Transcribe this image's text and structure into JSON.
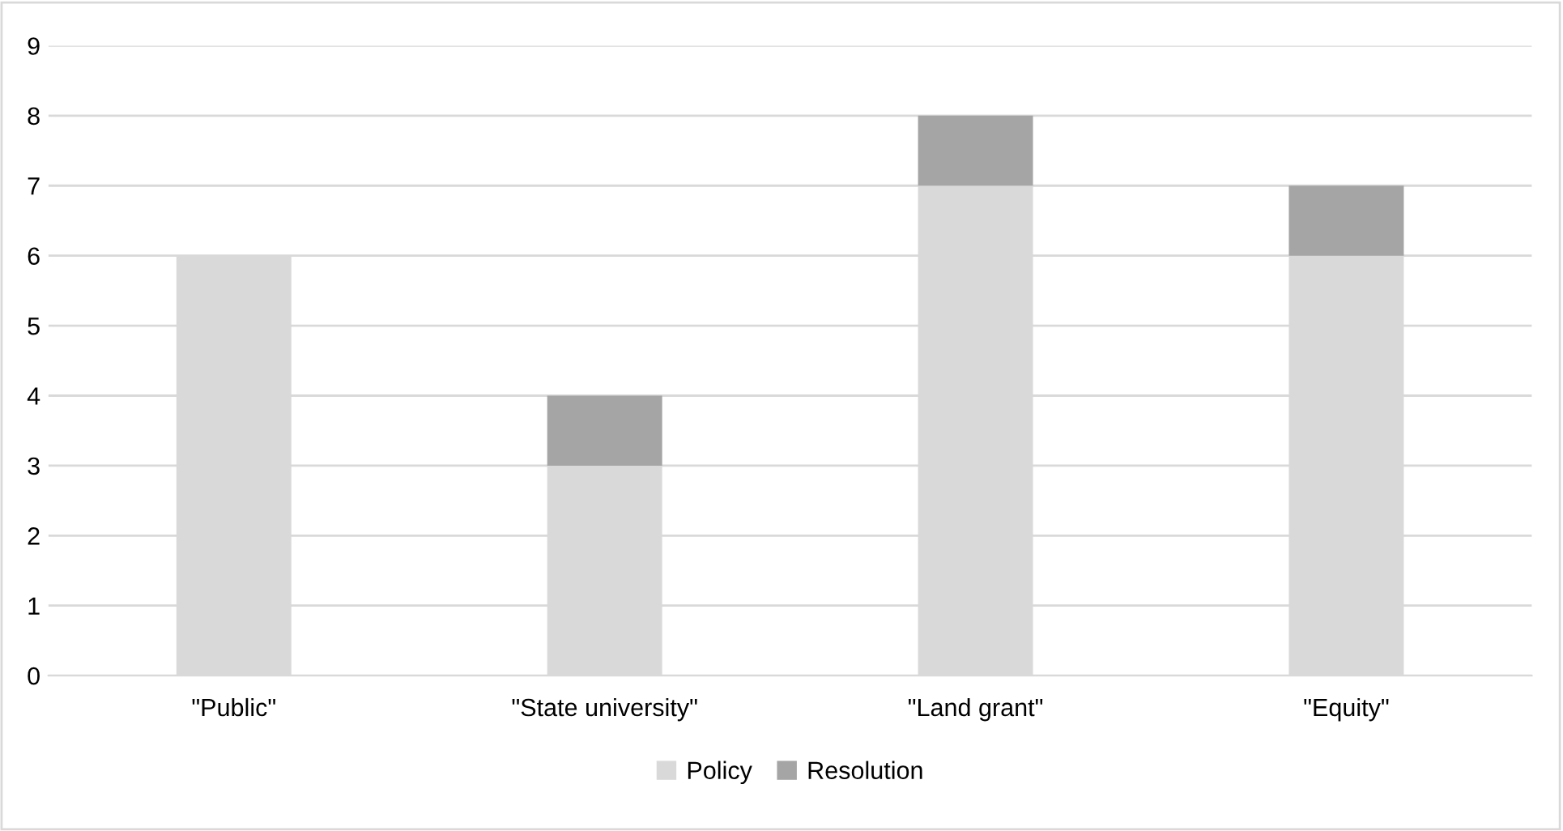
{
  "chart_data": {
    "type": "bar",
    "stacked": true,
    "categories": [
      "\"Public\"",
      "\"State university\"",
      "\"Land grant\"",
      "\"Equity\""
    ],
    "series": [
      {
        "name": "Policy",
        "color": "#d9d9d9",
        "values": [
          6,
          3,
          7,
          6
        ]
      },
      {
        "name": "Resolution",
        "color": "#a5a5a5",
        "values": [
          0,
          1,
          1,
          1
        ]
      }
    ],
    "ylim": [
      0,
      9
    ],
    "yticks": [
      0,
      1,
      2,
      3,
      4,
      5,
      6,
      7,
      8,
      9
    ],
    "grid": "y",
    "legend": "bottom"
  }
}
